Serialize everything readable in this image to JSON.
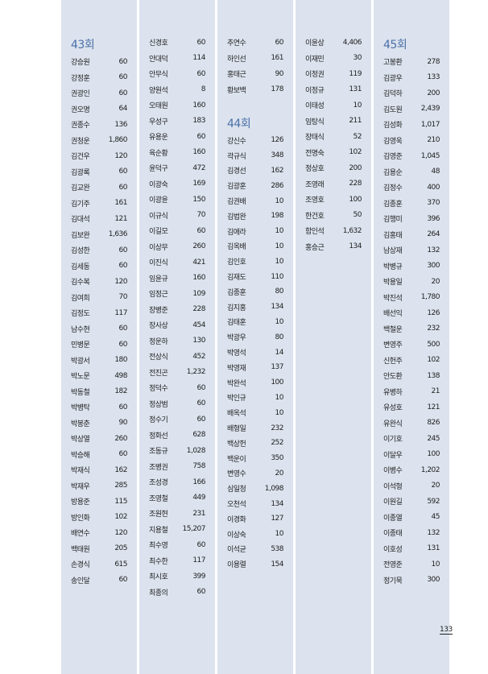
{
  "sections": {
    "s43": {
      "title": "43회",
      "items": [
        [
          "강승원",
          "60"
        ],
        [
          "강정훈",
          "60"
        ],
        [
          "권광인",
          "60"
        ],
        [
          "권오명",
          "64"
        ],
        [
          "권종수",
          "136"
        ],
        [
          "권청운",
          "1,860"
        ],
        [
          "김건우",
          "120"
        ],
        [
          "김광록",
          "60"
        ],
        [
          "김교완",
          "60"
        ],
        [
          "김기주",
          "161"
        ],
        [
          "김대석",
          "121"
        ],
        [
          "김보완",
          "1,636"
        ],
        [
          "김성한",
          "60"
        ],
        [
          "김세동",
          "60"
        ],
        [
          "김수복",
          "120"
        ],
        [
          "김여희",
          "70"
        ],
        [
          "김정도",
          "117"
        ],
        [
          "남수현",
          "60"
        ],
        [
          "민병문",
          "60"
        ],
        [
          "박광서",
          "180"
        ],
        [
          "박노문",
          "498"
        ],
        [
          "박동철",
          "182"
        ],
        [
          "박병탁",
          "60"
        ],
        [
          "박봉춘",
          "90"
        ],
        [
          "박상열",
          "260"
        ],
        [
          "박승해",
          "60"
        ],
        [
          "박재식",
          "162"
        ],
        [
          "박재우",
          "285"
        ],
        [
          "방용준",
          "115"
        ],
        [
          "방인화",
          "102"
        ],
        [
          "배연수",
          "120"
        ],
        [
          "백태원",
          "205"
        ],
        [
          "손경식",
          "615"
        ],
        [
          "송인달",
          "60"
        ],
        [
          "신경호",
          "60"
        ],
        [
          "안대덕",
          "114"
        ],
        [
          "안무식",
          "60"
        ],
        [
          "양원석",
          "8"
        ],
        [
          "오태원",
          "160"
        ],
        [
          "우성구",
          "183"
        ],
        [
          "유용운",
          "60"
        ],
        [
          "육순황",
          "160"
        ],
        [
          "윤덕구",
          "472"
        ],
        [
          "이광숙",
          "169"
        ],
        [
          "이광윤",
          "150"
        ],
        [
          "이규식",
          "70"
        ],
        [
          "이길모",
          "60"
        ],
        [
          "이상무",
          "260"
        ],
        [
          "이진식",
          "421"
        ],
        [
          "임윤규",
          "160"
        ],
        [
          "임정근",
          "109"
        ],
        [
          "장병준",
          "228"
        ],
        [
          "장사상",
          "454"
        ],
        [
          "정운하",
          "130"
        ],
        [
          "전상식",
          "452"
        ],
        [
          "전진곤",
          "1,232"
        ],
        [
          "정덕수",
          "60"
        ],
        [
          "정상범",
          "60"
        ],
        [
          "정수기",
          "60"
        ],
        [
          "정화선",
          "628"
        ],
        [
          "조동규",
          "1,028"
        ],
        [
          "조병권",
          "758"
        ],
        [
          "조성경",
          "166"
        ],
        [
          "조영철",
          "449"
        ],
        [
          "조원현",
          "231"
        ],
        [
          "지용철",
          "15,207"
        ],
        [
          "최수영",
          "60"
        ],
        [
          "최수한",
          "117"
        ],
        [
          "최시호",
          "399"
        ],
        [
          "최종의",
          "60"
        ],
        [
          "추연수",
          "60"
        ],
        [
          "하인선",
          "161"
        ],
        [
          "홍태근",
          "90"
        ],
        [
          "황보백",
          "178"
        ]
      ]
    },
    "s44": {
      "title": "44회",
      "items": [
        [
          "강신수",
          "126"
        ],
        [
          "곽규식",
          "348"
        ],
        [
          "김경선",
          "162"
        ],
        [
          "김광훈",
          "286"
        ],
        [
          "김권배",
          "10"
        ],
        [
          "김법완",
          "198"
        ],
        [
          "김애라",
          "10"
        ],
        [
          "김옥배",
          "10"
        ],
        [
          "김인호",
          "10"
        ],
        [
          "김재도",
          "110"
        ],
        [
          "김종훈",
          "80"
        ],
        [
          "김지홍",
          "134"
        ],
        [
          "김태훈",
          "10"
        ],
        [
          "박광우",
          "80"
        ],
        [
          "박영석",
          "14"
        ],
        [
          "박영재",
          "137"
        ],
        [
          "박완석",
          "100"
        ],
        [
          "박인규",
          "10"
        ],
        [
          "배옥석",
          "10"
        ],
        [
          "배형일",
          "232"
        ],
        [
          "백상헌",
          "252"
        ],
        [
          "백운이",
          "350"
        ],
        [
          "변영수",
          "20"
        ],
        [
          "심일청",
          "1,098"
        ],
        [
          "오천석",
          "134"
        ],
        [
          "이경화",
          "127"
        ],
        [
          "이상숙",
          "10"
        ],
        [
          "이석균",
          "538"
        ],
        [
          "이용렬",
          "154"
        ],
        [
          "이윤상",
          "4,406"
        ],
        [
          "이재민",
          "30"
        ],
        [
          "이정권",
          "119"
        ],
        [
          "이정규",
          "131"
        ],
        [
          "이태성",
          "10"
        ],
        [
          "임탕식",
          "211"
        ],
        [
          "장태식",
          "52"
        ],
        [
          "전명숙",
          "102"
        ],
        [
          "정상호",
          "200"
        ],
        [
          "조영래",
          "228"
        ],
        [
          "조영호",
          "100"
        ],
        [
          "한건호",
          "50"
        ],
        [
          "함인석",
          "1,632"
        ],
        [
          "홍승근",
          "134"
        ]
      ]
    },
    "s45": {
      "title": "45회",
      "items": [
        [
          "고봉환",
          "278"
        ],
        [
          "김광우",
          "133"
        ],
        [
          "김덕하",
          "200"
        ],
        [
          "김도원",
          "2,439"
        ],
        [
          "김성화",
          "1,017"
        ],
        [
          "김영욱",
          "210"
        ],
        [
          "김영준",
          "1,045"
        ],
        [
          "김용순",
          "48"
        ],
        [
          "김정수",
          "400"
        ],
        [
          "김종훈",
          "370"
        ],
        [
          "김행미",
          "396"
        ],
        [
          "김홍태",
          "264"
        ],
        [
          "남상재",
          "132"
        ],
        [
          "박병규",
          "300"
        ],
        [
          "박용일",
          "20"
        ],
        [
          "박진석",
          "1,780"
        ],
        [
          "배선익",
          "126"
        ],
        [
          "백철운",
          "232"
        ],
        [
          "변영주",
          "500"
        ],
        [
          "신헌주",
          "102"
        ],
        [
          "안도환",
          "138"
        ],
        [
          "유병하",
          "21"
        ],
        [
          "유성호",
          "121"
        ],
        [
          "유완식",
          "826"
        ],
        [
          "이기호",
          "245"
        ],
        [
          "이달우",
          "100"
        ],
        [
          "이병수",
          "1,202"
        ],
        [
          "이석형",
          "20"
        ],
        [
          "이원길",
          "592"
        ],
        [
          "이종열",
          "45"
        ],
        [
          "이종태",
          "132"
        ],
        [
          "이호성",
          "131"
        ],
        [
          "전영준",
          "10"
        ],
        [
          "정기묵",
          "300"
        ]
      ]
    }
  },
  "page_number": "133",
  "colors": {
    "column_bg": "#dce3ee",
    "heading": "#4a70a8"
  }
}
